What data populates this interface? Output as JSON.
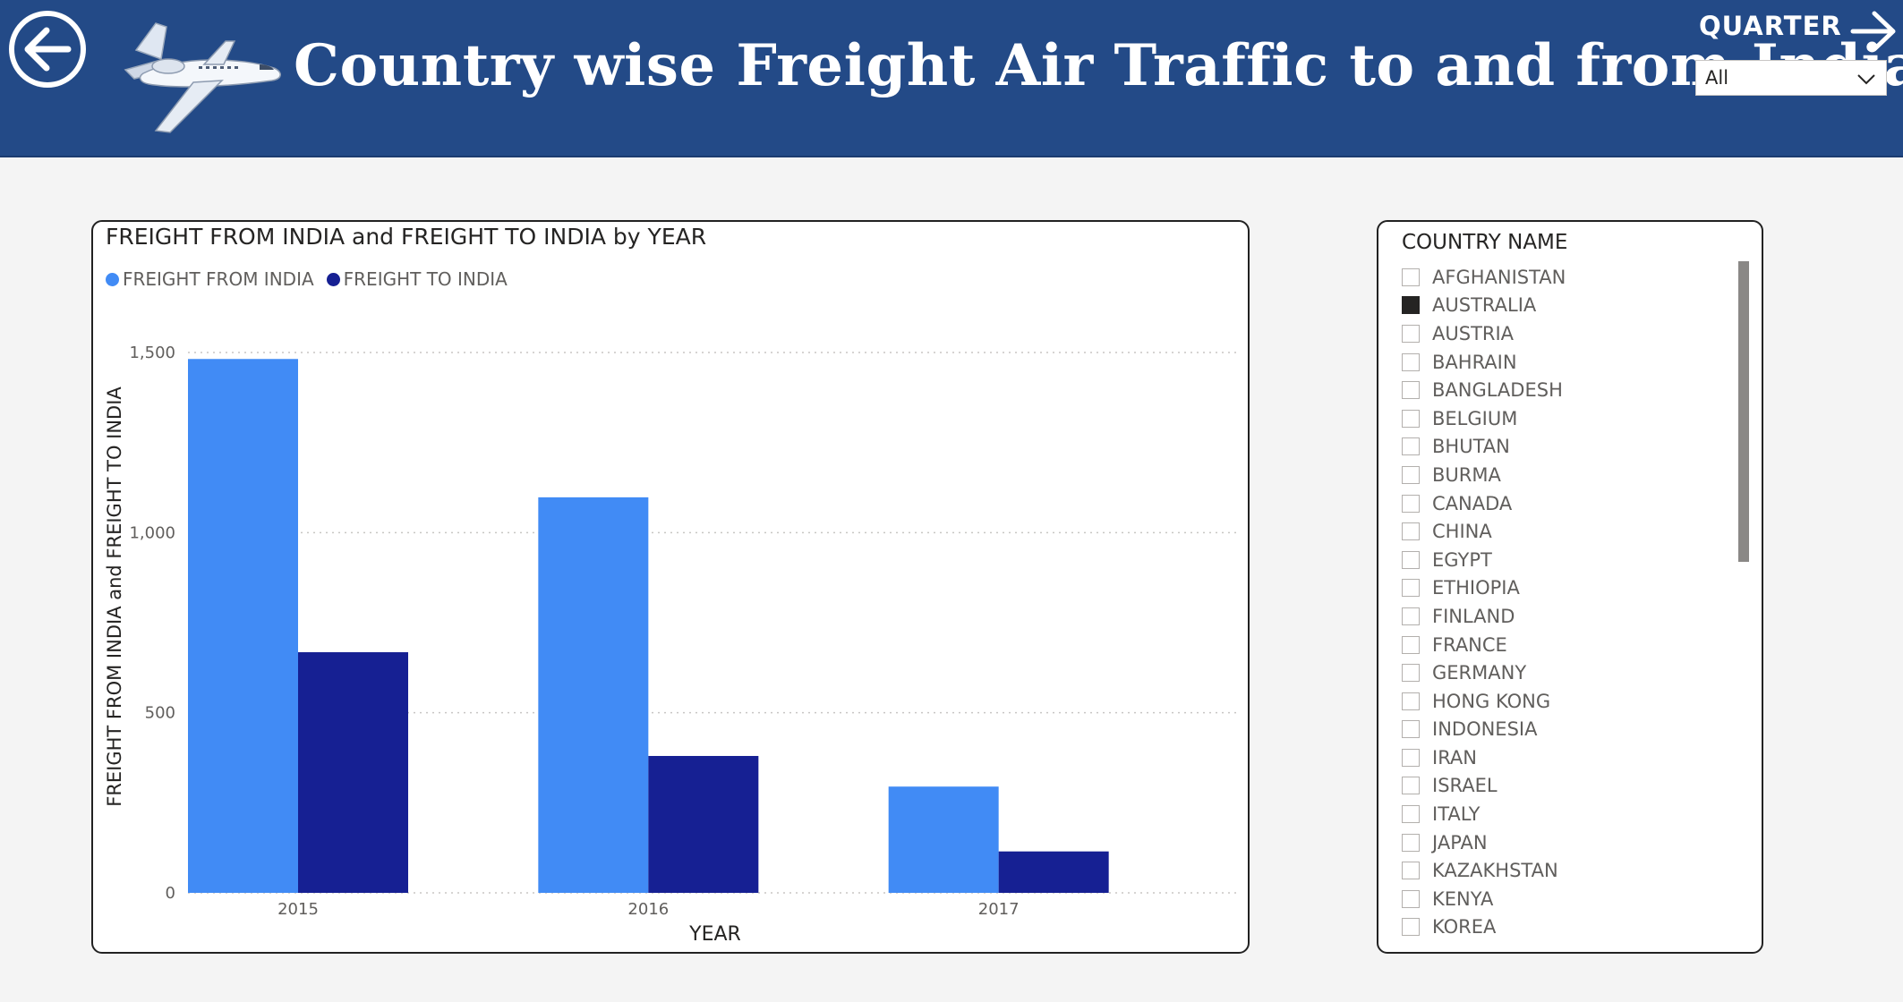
{
  "header": {
    "title": "Country wise Freight Air Traffic to and from India",
    "quarter_label": "QUARTER",
    "quarter_value": "All",
    "back_icon": "arrow-left-circle-icon",
    "next_icon": "arrow-right-icon",
    "plane_icon": "airplane-icon"
  },
  "colors": {
    "header_bg": "#234a87",
    "freight_from": "#418bf5",
    "freight_to": "#162093"
  },
  "chart": {
    "title": "FREIGHT FROM INDIA and FREIGHT TO INDIA by YEAR",
    "legend": [
      "FREIGHT FROM INDIA",
      "FREIGHT TO INDIA"
    ]
  },
  "chart_data": {
    "type": "bar",
    "title": "FREIGHT FROM INDIA and FREIGHT TO INDIA by YEAR",
    "xlabel": "YEAR",
    "ylabel": "FREIGHT FROM INDIA and FREIGHT TO INDIA",
    "categories": [
      "2015",
      "2016",
      "2017"
    ],
    "series": [
      {
        "name": "FREIGHT FROM INDIA",
        "values": [
          1482,
          1098,
          295
        ],
        "color": "#418bf5"
      },
      {
        "name": "FREIGHT TO INDIA",
        "values": [
          668,
          380,
          115
        ],
        "color": "#162093"
      }
    ],
    "ylim": [
      0,
      1500
    ],
    "yticks": [
      0,
      500,
      1000,
      1500
    ],
    "ytick_labels": [
      "0",
      "500",
      "1,000",
      "1,500"
    ],
    "grid": true,
    "legend_position": "top-left"
  },
  "slicer": {
    "title": "COUNTRY NAME",
    "items": [
      {
        "label": "AFGHANISTAN",
        "checked": false
      },
      {
        "label": "AUSTRALIA",
        "checked": true
      },
      {
        "label": "AUSTRIA",
        "checked": false
      },
      {
        "label": "BAHRAIN",
        "checked": false
      },
      {
        "label": "BANGLADESH",
        "checked": false
      },
      {
        "label": "BELGIUM",
        "checked": false
      },
      {
        "label": "BHUTAN",
        "checked": false
      },
      {
        "label": "BURMA",
        "checked": false
      },
      {
        "label": "CANADA",
        "checked": false
      },
      {
        "label": "CHINA",
        "checked": false
      },
      {
        "label": "EGYPT",
        "checked": false
      },
      {
        "label": "ETHIOPIA",
        "checked": false
      },
      {
        "label": "FINLAND",
        "checked": false
      },
      {
        "label": "FRANCE",
        "checked": false
      },
      {
        "label": "GERMANY",
        "checked": false
      },
      {
        "label": "HONG KONG",
        "checked": false
      },
      {
        "label": "INDONESIA",
        "checked": false
      },
      {
        "label": "IRAN",
        "checked": false
      },
      {
        "label": "ISRAEL",
        "checked": false
      },
      {
        "label": "ITALY",
        "checked": false
      },
      {
        "label": "JAPAN",
        "checked": false
      },
      {
        "label": "KAZAKHSTAN",
        "checked": false
      },
      {
        "label": "KENYA",
        "checked": false
      },
      {
        "label": "KOREA",
        "checked": false
      }
    ]
  }
}
